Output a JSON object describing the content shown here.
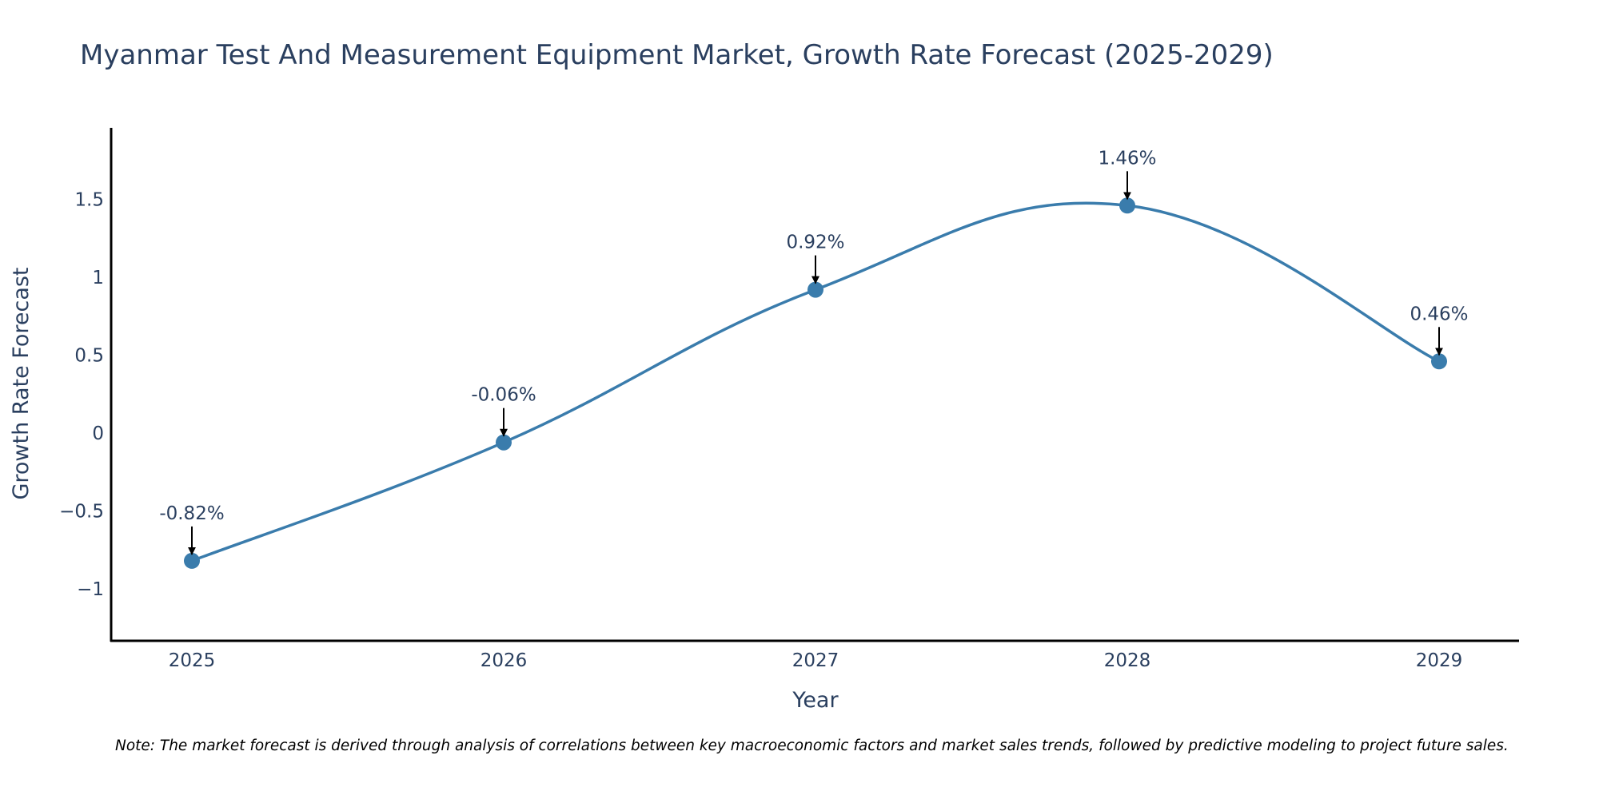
{
  "chart_data": {
    "type": "line",
    "title": "Myanmar Test And Measurement Equipment Market, Growth Rate Forecast (2025-2029)",
    "xlabel": "Year",
    "ylabel": "Growth Rate Forecast",
    "categories": [
      "2025",
      "2026",
      "2027",
      "2028",
      "2029"
    ],
    "series": [
      {
        "name": "Growth Rate Forecast",
        "values": [
          -0.82,
          -0.06,
          0.92,
          1.46,
          0.46
        ],
        "labels": [
          "-0.82%",
          "-0.06%",
          "0.92%",
          "1.46%",
          "0.46%"
        ],
        "color": "#3a7cac",
        "smoothing": "spline"
      }
    ],
    "ylim": [
      -1.33,
      1.95
    ],
    "yticks": [
      {
        "value": -1,
        "label": "−1"
      },
      {
        "value": -0.5,
        "label": "−0.5"
      },
      {
        "value": 0,
        "label": "0"
      },
      {
        "value": 0.5,
        "label": "0.5"
      },
      {
        "value": 1,
        "label": "1"
      },
      {
        "value": 1.5,
        "label": "1.5"
      }
    ],
    "grid": false,
    "note": "Note: The market forecast is derived through analysis of correlations between key macroeconomic factors and market sales trends, followed by predictive modeling to project future sales."
  },
  "colors": {
    "text": "#2a3f5f",
    "axis": "#000000",
    "line": "#3a7cac",
    "marker": "#3a7cac",
    "arrow": "#000000"
  }
}
